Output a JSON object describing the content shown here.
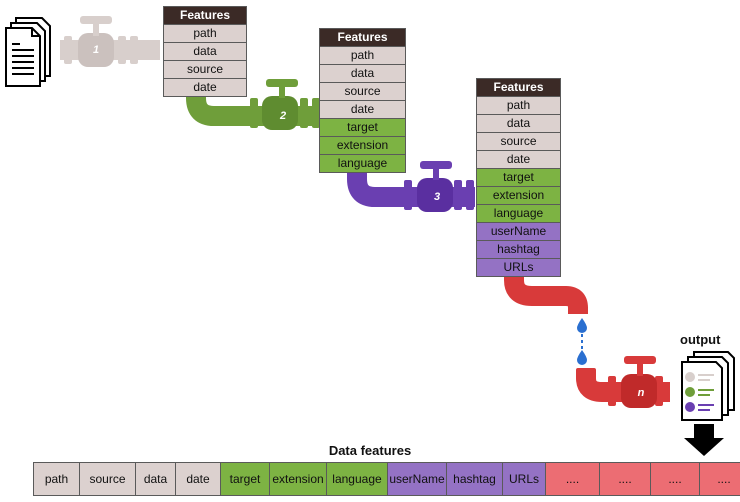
{
  "colors": {
    "header": "#3b2a26",
    "base": "#dcd1cf",
    "green": "#7db343",
    "purple": "#9472c4",
    "red": "#ec6d73",
    "pipe_gray": "#d8cfcc",
    "pipe_green": "#6f9e3a",
    "pipe_purple": "#6a3fb1",
    "pipe_red": "#d83a3a"
  },
  "tables": [
    {
      "header": "Features",
      "rows": [
        "path",
        "data",
        "source",
        "date"
      ]
    },
    {
      "header": "Features",
      "rows": [
        "path",
        "data",
        "source",
        "date",
        "target",
        "extension",
        "language"
      ]
    },
    {
      "header": "Features",
      "rows": [
        "path",
        "data",
        "source",
        "date",
        "target",
        "extension",
        "language",
        "userName",
        "hashtag",
        "URLs"
      ]
    }
  ],
  "valves": [
    "1",
    "2",
    "3",
    "n"
  ],
  "output_label": "output",
  "bottom_title": "Data features",
  "strip": [
    "path",
    "source",
    "data",
    "date",
    "target",
    "extension",
    "language",
    "userName",
    "hashtag",
    "URLs",
    "....",
    "....",
    "....",
    "...."
  ]
}
